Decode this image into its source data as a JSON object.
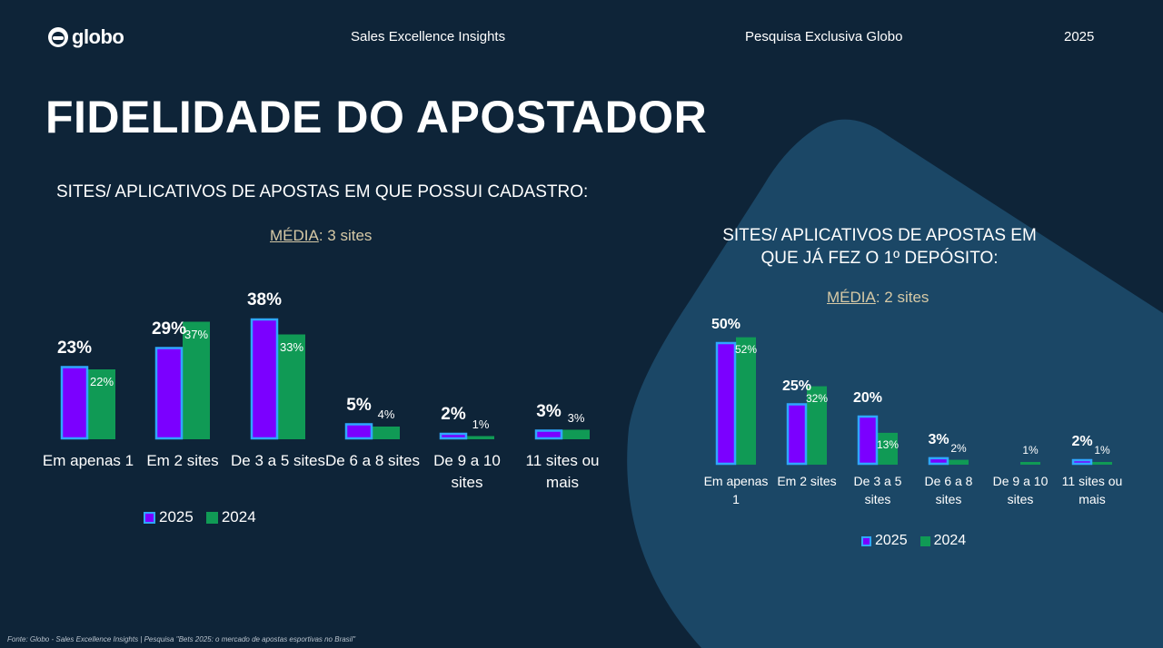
{
  "header": {
    "logo_text": "globo",
    "center_text": "Sales Excellence Insights",
    "right_text": "Pesquisa Exclusiva Globo",
    "year": "2025"
  },
  "page_title": "FIDELIDADE DO APOSTADOR",
  "footer": "Fonte: Globo - Sales Excellence Insights | Pesquisa \"Bets 2025: o mercado de apostas esportivas no Brasil\"",
  "colors": {
    "background": "#0e2438",
    "panel": "#1b4766",
    "bar_2025": "#7b00ff",
    "bar_2025_border": "#2fa6ff",
    "bar_2024": "#109a55",
    "media_text": "#d6c9a6"
  },
  "chart_data": [
    {
      "type": "bar",
      "title": "SITES/ APLICATIVOS DE APOSTAS EM QUE POSSUI CADASTRO:",
      "media_label": "MÉDIA",
      "media_value": ": 3 sites",
      "categories": [
        "Em apenas 1",
        "Em 2 sites",
        "De 3 a 5 sites",
        "De 6 a 8 sites",
        "De 9 a 10 sites",
        "11 sites ou mais"
      ],
      "series": [
        {
          "name": "2025",
          "values": [
            23,
            29,
            38,
            5,
            2,
            3
          ],
          "labels": [
            "23%",
            "29%",
            "38%",
            "5%",
            "2%",
            "3%"
          ]
        },
        {
          "name": "2024",
          "values": [
            22,
            37,
            33,
            4,
            1,
            3
          ],
          "labels": [
            "22%",
            "37%",
            "33%",
            "4%",
            "1%",
            "3%"
          ]
        }
      ],
      "unit": "%",
      "legend": "bottom",
      "grid": false
    },
    {
      "type": "bar",
      "title": "SITES/ APLICATIVOS DE APOSTAS EM QUE JÁ FEZ O 1º DEPÓSITO:",
      "media_label": "MÉDIA",
      "media_value": ": 2 sites",
      "categories": [
        "Em apenas 1",
        "Em 2 sites",
        "De 3 a 5 sites",
        "De 6 a 8 sites",
        "De 9 a 10 sites",
        "11 sites ou mais"
      ],
      "series": [
        {
          "name": "2025",
          "values": [
            50,
            25,
            20,
            3,
            0,
            2
          ],
          "labels": [
            "50%",
            "25%",
            "20%",
            "3%",
            "",
            "2%"
          ]
        },
        {
          "name": "2024",
          "values": [
            52,
            32,
            13,
            2,
            1,
            1
          ],
          "labels": [
            "52%",
            "32%",
            "13%",
            "2%",
            "1%",
            "1%"
          ]
        }
      ],
      "unit": "%",
      "legend": "bottom",
      "grid": false
    }
  ]
}
